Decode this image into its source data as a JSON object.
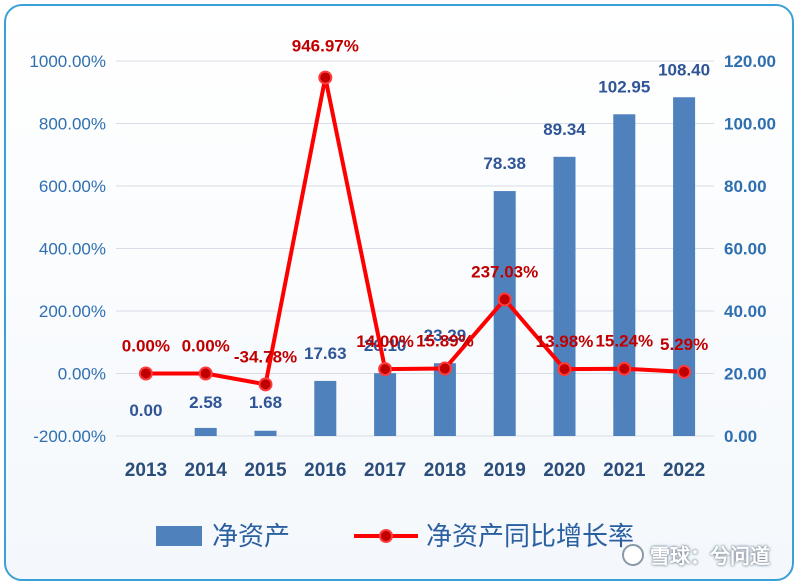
{
  "chart_data": {
    "type": "bar+line",
    "categories": [
      "2013",
      "2014",
      "2015",
      "2016",
      "2017",
      "2018",
      "2019",
      "2020",
      "2021",
      "2022"
    ],
    "series": [
      {
        "name": "净资产",
        "type": "bar",
        "axis": "right",
        "color": "#4f81bd",
        "values": [
          0.0,
          2.58,
          1.68,
          17.63,
          20.1,
          23.29,
          78.38,
          89.34,
          102.95,
          108.4
        ],
        "labels": [
          "0.00",
          "2.58",
          "1.68",
          "17.63",
          "20.10",
          "23.29",
          "78.38",
          "89.34",
          "102.95",
          "108.40"
        ]
      },
      {
        "name": "净资产同比增长率",
        "type": "line",
        "axis": "left",
        "color": "#ff0000",
        "values": [
          0.0,
          0.0,
          -34.78,
          946.97,
          14.0,
          15.89,
          237.03,
          13.98,
          15.24,
          5.29
        ],
        "labels": [
          "0.00%",
          "0.00%",
          "-34.78%",
          "946.97%",
          "14.00%",
          "15.89%",
          "237.03%",
          "13.98%",
          "15.24%",
          "5.29%"
        ]
      }
    ],
    "left_axis": {
      "ylim": [
        -200,
        1000
      ],
      "ticks": [
        "-200.00%",
        "0.00%",
        "200.00%",
        "400.00%",
        "600.00%",
        "800.00%",
        "1000.00%"
      ],
      "tick_values": [
        -200,
        0,
        200,
        400,
        600,
        800,
        1000
      ]
    },
    "right_axis": {
      "ylim": [
        0,
        120
      ],
      "ticks": [
        "0.00",
        "20.00",
        "40.00",
        "60.00",
        "80.00",
        "100.00",
        "120.00"
      ],
      "tick_values": [
        0,
        20,
        40,
        60,
        80,
        100,
        120
      ]
    },
    "grid": true,
    "legend": "bottom",
    "title": "",
    "xlabel": "",
    "ylabel": ""
  },
  "watermark": {
    "text": "雪球：兮问道"
  }
}
